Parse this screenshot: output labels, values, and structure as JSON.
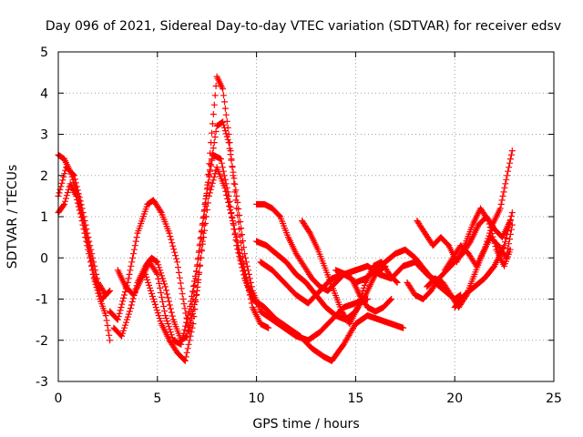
{
  "chart_data": {
    "type": "scatter",
    "title": "Day 096 of 2021, Sidereal Day-to-day VTEC variation (SDTVAR) for receiver edsv",
    "xlabel": "GPS time / hours",
    "ylabel": "SDTVAR / TECUs",
    "xlim": [
      0,
      25
    ],
    "ylim": [
      -3,
      5
    ],
    "xticks": [
      "0",
      "5",
      "10",
      "15",
      "20",
      "25"
    ],
    "yticks": [
      "-3",
      "-2",
      "-1",
      "0",
      "1",
      "2",
      "3",
      "4",
      "5"
    ],
    "grid": true,
    "marker": "plus",
    "color": "#ff0000",
    "series": [
      {
        "x": [
          0.0,
          0.3,
          0.6,
          1.0,
          1.4,
          1.8,
          2.2,
          2.6
        ],
        "y": [
          2.5,
          2.4,
          2.1,
          1.5,
          0.6,
          -0.4,
          -1.0,
          -0.8
        ]
      },
      {
        "x": [
          0.0,
          0.3,
          0.6,
          0.9,
          1.2,
          1.5,
          1.8,
          2.1,
          2.4,
          2.6
        ],
        "y": [
          1.1,
          1.3,
          1.8,
          1.5,
          0.9,
          0.2,
          -0.5,
          -1.0,
          -1.4,
          -2.0
        ]
      },
      {
        "x": [
          0.0,
          0.4,
          0.8,
          1.2,
          1.6,
          2.0,
          2.4
        ],
        "y": [
          1.5,
          2.2,
          2.0,
          1.2,
          0.3,
          -0.6,
          -0.9
        ]
      },
      {
        "x": [
          2.6,
          3.0,
          3.5,
          4.0,
          4.5,
          4.8,
          5.2,
          5.6,
          6.0,
          6.3,
          6.6,
          7.0,
          7.4,
          7.7,
          8.0,
          8.3,
          8.6,
          9.0,
          9.4,
          9.8,
          10.2,
          10.6
        ],
        "y": [
          -1.3,
          -1.5,
          -0.6,
          0.6,
          1.3,
          1.4,
          1.1,
          0.6,
          -0.1,
          -1.0,
          -1.8,
          -0.8,
          1.0,
          2.8,
          4.4,
          4.1,
          3.0,
          1.2,
          -0.3,
          -1.2,
          -1.6,
          -1.7
        ]
      },
      {
        "x": [
          2.8,
          3.2,
          3.6,
          4.0,
          4.4,
          4.7,
          5.0,
          5.4,
          5.8,
          6.2,
          6.5,
          6.8,
          7.2,
          7.6,
          8.0,
          8.3,
          8.6,
          9.0,
          9.4,
          9.8,
          10.2,
          10.8,
          11.4,
          12.0,
          12.6,
          13.2,
          13.8,
          14.4,
          15.0,
          15.6
        ],
        "y": [
          -1.7,
          -1.9,
          -1.3,
          -0.6,
          -0.2,
          0.0,
          -0.1,
          -0.7,
          -1.5,
          -2.0,
          -1.9,
          -1.0,
          0.5,
          2.0,
          3.2,
          3.3,
          2.8,
          1.5,
          0.1,
          -0.8,
          -1.3,
          -1.5,
          -1.7,
          -1.9,
          -2.0,
          -1.8,
          -1.5,
          -1.2,
          -1.1,
          -1.0
        ]
      },
      {
        "x": [
          3.0,
          3.4,
          3.8,
          4.2,
          4.6,
          5.0,
          5.4,
          5.8,
          6.2,
          6.6,
          7.0,
          7.4,
          7.8,
          8.2,
          8.6,
          9.0,
          9.4,
          9.8,
          10.4,
          11.0,
          11.6,
          12.2,
          12.8,
          13.4,
          13.8,
          14.4,
          15.0,
          15.6,
          16.2,
          16.8,
          17.4
        ],
        "y": [
          -0.3,
          -0.7,
          -0.9,
          -0.5,
          -0.1,
          -0.4,
          -1.4,
          -2.0,
          -2.1,
          -1.3,
          -0.2,
          1.3,
          2.5,
          2.4,
          1.5,
          0.3,
          -0.5,
          -1.0,
          -1.2,
          -1.5,
          -1.7,
          -1.9,
          -2.2,
          -2.4,
          -2.5,
          -2.1,
          -1.6,
          -1.4,
          -1.5,
          -1.6,
          -1.7
        ]
      },
      {
        "x": [
          4.4,
          4.8,
          5.2,
          5.6,
          6.0,
          6.4,
          6.8,
          7.2,
          7.6,
          8.0,
          8.4,
          8.8,
          9.2,
          9.6,
          10.0
        ],
        "y": [
          -0.4,
          -1.0,
          -1.6,
          -2.0,
          -2.3,
          -2.5,
          -1.6,
          0.0,
          1.5,
          2.2,
          1.7,
          0.9,
          0.0,
          -0.7,
          -1.1
        ]
      },
      {
        "x": [
          10.0,
          10.4,
          10.8,
          11.2,
          11.6,
          12.0,
          12.4,
          12.8,
          13.2,
          13.6,
          14.0,
          14.4,
          14.8,
          15.2,
          15.6,
          16.0,
          16.4,
          16.8
        ],
        "y": [
          1.3,
          1.3,
          1.2,
          1.0,
          0.5,
          0.1,
          -0.2,
          -0.5,
          -0.7,
          -0.8,
          -0.6,
          -0.4,
          -0.5,
          -0.9,
          -1.2,
          -1.3,
          -1.2,
          -1.0
        ]
      },
      {
        "x": [
          10.0,
          10.5,
          11.0,
          11.5,
          12.0,
          12.5,
          13.0,
          13.5,
          14.0,
          14.5,
          15.0,
          15.5,
          16.0,
          16.5
        ],
        "y": [
          0.4,
          0.3,
          0.1,
          -0.1,
          -0.4,
          -0.6,
          -0.9,
          -1.2,
          -1.4,
          -1.5,
          -1.3,
          -0.9,
          -0.4,
          -0.2
        ]
      },
      {
        "x": [
          10.2,
          10.8,
          11.4,
          12.0,
          12.6,
          13.2,
          13.8,
          14.4,
          15.0,
          15.6,
          16.2,
          16.8,
          17.4,
          18.0,
          18.6,
          19.2
        ],
        "y": [
          -0.1,
          -0.3,
          -0.6,
          -0.9,
          -1.1,
          -0.8,
          -0.5,
          -0.4,
          -0.3,
          -0.2,
          -0.4,
          -0.5,
          -0.2,
          -0.1,
          -0.4,
          -0.6
        ]
      },
      {
        "x": [
          12.3,
          12.7,
          13.1,
          13.5,
          13.9,
          14.3,
          14.7,
          15.1,
          15.5,
          15.9,
          16.3,
          16.7,
          17.1
        ],
        "y": [
          0.9,
          0.6,
          0.2,
          -0.3,
          -0.8,
          -1.3,
          -1.6,
          -1.2,
          -0.6,
          -0.2,
          -0.1,
          -0.4,
          -0.6
        ]
      },
      {
        "x": [
          14.0,
          14.5,
          15.0,
          15.5,
          16.0,
          16.5,
          17.0,
          17.5,
          18.0,
          18.5,
          19.0,
          19.5,
          20.0,
          20.3
        ],
        "y": [
          -0.3,
          -0.4,
          -0.6,
          -0.5,
          -0.3,
          -0.1,
          0.1,
          0.2,
          0.0,
          -0.3,
          -0.6,
          -0.8,
          -1.0,
          -0.9
        ]
      },
      {
        "x": [
          17.6,
          18.0,
          18.4,
          18.8,
          19.2,
          19.6,
          20.0,
          20.4,
          20.8,
          21.2,
          21.6,
          22.0,
          22.4,
          22.8
        ],
        "y": [
          -0.6,
          -0.9,
          -1.0,
          -0.8,
          -0.5,
          -0.3,
          -0.1,
          0.1,
          0.4,
          0.8,
          1.0,
          0.7,
          0.5,
          0.9
        ]
      },
      {
        "x": [
          18.1,
          18.5,
          18.9,
          19.3,
          19.7,
          20.1,
          20.5,
          20.9,
          21.3,
          21.7,
          22.1,
          22.5,
          22.8
        ],
        "y": [
          0.9,
          0.6,
          0.3,
          0.5,
          0.3,
          -0.1,
          0.3,
          0.8,
          1.2,
          0.9,
          0.2,
          -0.2,
          0.2
        ]
      },
      {
        "x": [
          18.6,
          19.0,
          19.4,
          19.8,
          20.2,
          20.6,
          21.0,
          21.4,
          21.8,
          22.2,
          22.6,
          22.9
        ],
        "y": [
          -0.7,
          -0.5,
          -0.6,
          -0.9,
          -1.2,
          -0.9,
          -0.4,
          0.1,
          0.5,
          0.3,
          0.0,
          0.8
        ]
      },
      {
        "x": [
          19.5,
          19.9,
          20.3,
          20.7,
          21.1,
          21.5,
          21.9,
          22.3,
          22.6,
          22.9
        ],
        "y": [
          -0.3,
          0.0,
          0.3,
          0.1,
          -0.2,
          0.2,
          0.8,
          1.2,
          1.9,
          2.6
        ]
      },
      {
        "x": [
          20.0,
          20.5,
          21.0,
          21.5,
          22.0,
          22.5,
          22.9
        ],
        "y": [
          -1.2,
          -0.9,
          -0.7,
          -0.5,
          -0.2,
          0.3,
          1.1
        ]
      }
    ]
  }
}
